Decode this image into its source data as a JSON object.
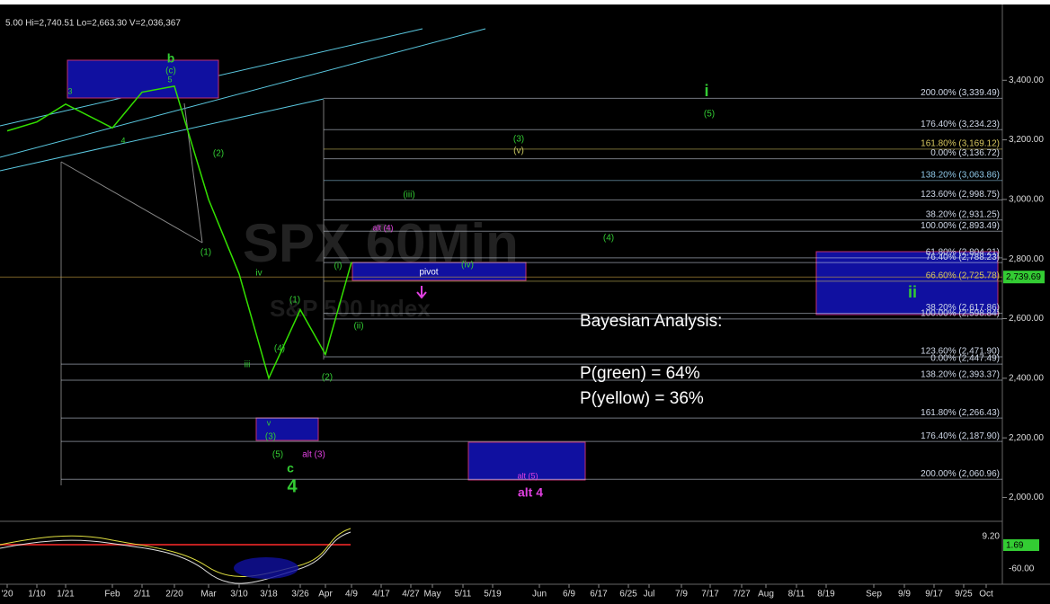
{
  "chart_data": {
    "type": "line",
    "header": "5.00  Hi=2,740.51  Lo=2,663.30  V=2,036,367",
    "watermark": "SPX 60Min",
    "watermark_sub": "S&P 500 Index",
    "categories": [
      "'20",
      "1/10",
      "1/21",
      "Feb",
      "2/11",
      "2/20",
      "Mar",
      "3/10",
      "3/18",
      "3/26",
      "Apr",
      "4/9",
      "4/17",
      "4/27",
      "May",
      "5/11",
      "5/19",
      "Jun",
      "6/9",
      "6/17",
      "6/25",
      "Jul",
      "7/9",
      "7/17",
      "7/27",
      "Aug",
      "8/11",
      "8/19",
      "Sep",
      "9/9",
      "9/17",
      "9/25",
      "Oct"
    ],
    "values": [
      3230,
      3260,
      3320,
      3240,
      3360,
      3380,
      3000,
      2750,
      2400,
      2630,
      2480,
      2790,
      null,
      null,
      null,
      null,
      null,
      null,
      null,
      null,
      null,
      null,
      null,
      null,
      null,
      null,
      null,
      null,
      null,
      null,
      null,
      null,
      null
    ],
    "color": "#33e000",
    "ylim": [
      1935,
      3615
    ],
    "yticks": [
      {
        "value": 2000,
        "label": "2,000.00"
      },
      {
        "value": 2200,
        "label": "2,200.00"
      },
      {
        "value": 2400,
        "label": "2,400.00"
      },
      {
        "value": 2600,
        "label": "2,600.00"
      },
      {
        "value": 2800,
        "label": "2,800.00"
      },
      {
        "value": 3000,
        "label": "3,000.00"
      },
      {
        "value": 3200,
        "label": "3,200.00"
      },
      {
        "value": 3400,
        "label": "3,400.00"
      }
    ],
    "price_tag": {
      "value": 2739.69,
      "label": "2,739.69"
    },
    "levels": [
      {
        "value": 3339.49,
        "label": "200.00% (3,339.49)",
        "color": "#cfd8e8"
      },
      {
        "value": 3234.23,
        "label": "176.40% (3,234.23)",
        "color": "#cfd8e8"
      },
      {
        "value": 3169.12,
        "label": "161.80% (3,169.12)",
        "color": "#d8c860"
      },
      {
        "value": 3136.72,
        "label": "0.00% (3,136.72)",
        "color": "#cfd8e8"
      },
      {
        "value": 3063.86,
        "label": "138.20% (3,063.86)",
        "color": "#8fc8e8"
      },
      {
        "value": 2998.75,
        "label": "123.60% (2,998.75)",
        "color": "#cfd8e8"
      },
      {
        "value": 2931.25,
        "label": "38.20% (2,931.25)",
        "color": "#cfd8e8"
      },
      {
        "value": 2893.49,
        "label": "100.00% (2,893.49)",
        "color": "#cfd8e8"
      },
      {
        "value": 2804.21,
        "label": "61.80% (2,804.21)",
        "color": "#cfd8e8"
      },
      {
        "value": 2788.23,
        "label": "76.40% (2,788.23)",
        "color": "#cfd8e8"
      },
      {
        "value": 2725.78,
        "label": "66.60% (2,725.78)",
        "color": "#d8c860"
      },
      {
        "value": 2617.86,
        "label": "38.20% (2,617.86)",
        "color": "#cfd8e8"
      },
      {
        "value": 2598.84,
        "label": "100.00% (2,598.84)",
        "color": "#cfd8e8"
      },
      {
        "value": 2471.9,
        "label": "123.60% (2,471.90)",
        "color": "#cfd8e8"
      },
      {
        "value": 2447.49,
        "label": "0.00% (2,447.49)",
        "color": "#cfd8e8"
      },
      {
        "value": 2393.37,
        "label": "138.20% (2,393.37)",
        "color": "#cfd8e8"
      },
      {
        "value": 2266.43,
        "label": "161.80% (2,266.43)",
        "color": "#cfd8e8"
      },
      {
        "value": 2187.9,
        "label": "176.40% (2,187.90)",
        "color": "#cfd8e8"
      },
      {
        "value": 2060.96,
        "label": "200.00% (2,060.96)",
        "color": "#cfd8e8"
      }
    ],
    "annotations": [
      {
        "text": "b",
        "color": "#33cc33"
      },
      {
        "text": "(c)",
        "color": "#33cc33"
      },
      {
        "text": "5",
        "color": "#33cc33"
      },
      {
        "text": "3",
        "color": "#33cc33"
      },
      {
        "text": "4",
        "color": "#33cc33"
      },
      {
        "text": "(2)",
        "color": "#33cc33"
      },
      {
        "text": "(1)",
        "color": "#33cc33"
      },
      {
        "text": "iv",
        "color": "#33cc33"
      },
      {
        "text": "iii",
        "color": "#33cc33"
      },
      {
        "text": "(4)",
        "color": "#33cc33"
      },
      {
        "text": "(1)",
        "color": "#33cc33"
      },
      {
        "text": "(i)",
        "color": "#33cc33"
      },
      {
        "text": "(ii)",
        "color": "#33cc33"
      },
      {
        "text": "(2)",
        "color": "#33cc33"
      },
      {
        "text": "v",
        "color": "#33cc33"
      },
      {
        "text": "(3)",
        "color": "#33cc33"
      },
      {
        "text": "(5)",
        "color": "#33cc33"
      },
      {
        "text": "c",
        "color": "#33cc33"
      },
      {
        "text": "4",
        "color": "#33cc33"
      },
      {
        "text": "alt (3)",
        "color": "#e040e0"
      },
      {
        "text": "alt (4)",
        "color": "#e040e0"
      },
      {
        "text": "pivot",
        "color": "#ffffff"
      },
      {
        "text": "(iv)",
        "color": "#33cc33"
      },
      {
        "text": "(iii)",
        "color": "#33cc33"
      },
      {
        "text": "(3)",
        "color": "#33cc33"
      },
      {
        "text": "(v)",
        "color": "#c8c860"
      },
      {
        "text": "(4)",
        "color": "#33cc33"
      },
      {
        "text": "i",
        "color": "#33cc33"
      },
      {
        "text": "(5)",
        "color": "#33cc33"
      },
      {
        "text": "ii",
        "color": "#33cc33"
      },
      {
        "text": "alt (5)",
        "color": "#e040e0"
      },
      {
        "text": "alt 4",
        "color": "#e040e0"
      }
    ],
    "notes": [
      "Bayesian Analysis:",
      "P(green) = 64%",
      "P(yellow) = 36%"
    ],
    "indicator_labels": [
      "9.20",
      "1.69",
      "-60.00"
    ]
  }
}
